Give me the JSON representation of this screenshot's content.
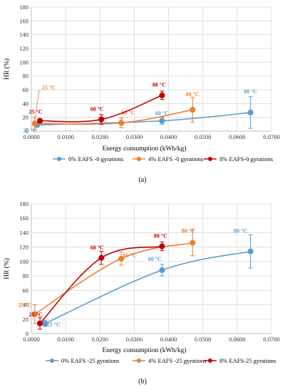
{
  "chart_data": [
    {
      "type": "line",
      "panel_label": "(a)",
      "xlabel": "Energy consumption (kWh/kg)",
      "ylabel": "HR (%)",
      "xlim": [
        0,
        0.07
      ],
      "ylim": [
        0,
        180
      ],
      "xticks": [
        "0.0000",
        "0.0100",
        "0.0200",
        "0.0300",
        "0.0400",
        "0.0500",
        "0.0600",
        "0.0700"
      ],
      "yticks": [
        "0",
        "20",
        "40",
        "60",
        "80",
        "100",
        "120",
        "140",
        "160",
        "180"
      ],
      "legend_position": "bottom",
      "grid": true,
      "series": [
        {
          "name": "0% EAFS -0 gyrations",
          "color": "#5b9bd5",
          "points": [
            {
              "x": 0.0017,
              "y": 9,
              "err": 3,
              "label": "25 °C"
            },
            {
              "x": 0.0381,
              "y": 15,
              "err": 5,
              "label": "60 °C"
            },
            {
              "x": 0.0639,
              "y": 27,
              "err": 23,
              "label": "80 °C"
            }
          ]
        },
        {
          "name": "4% EAFS -0 gyrations",
          "color": "#ed7d31",
          "points": [
            {
              "x": 0.001,
              "y": 11,
              "err": 9,
              "label": "25 °C"
            },
            {
              "x": 0.0262,
              "y": 12,
              "err": 7,
              "label": "60 °C"
            },
            {
              "x": 0.047,
              "y": 31,
              "err": 18,
              "label": "80 °C"
            }
          ]
        },
        {
          "name": "8% EAFS-0 gyrations",
          "color": "#c00000",
          "points": [
            {
              "x": 0.0025,
              "y": 15,
              "err": 3,
              "label": "25 °C"
            },
            {
              "x": 0.0204,
              "y": 17,
              "err": 7,
              "label": "60 °C"
            },
            {
              "x": 0.0381,
              "y": 52,
              "err": 6,
              "label": "80 °C"
            }
          ]
        }
      ]
    },
    {
      "type": "line",
      "panel_label": "(b)",
      "xlabel": "Energy consumption (kWh/kg)",
      "ylabel": "HR (%)",
      "xlim": [
        0,
        0.07
      ],
      "ylim": [
        0,
        180
      ],
      "xticks": [
        "0.0000",
        "0.0100",
        "0.0200",
        "0.0300",
        "0.0400",
        "0.0500",
        "0.0600",
        "0.0700"
      ],
      "yticks": [
        "0",
        "20",
        "40",
        "60",
        "80",
        "100",
        "120",
        "140",
        "160",
        "180"
      ],
      "legend_position": "bottom",
      "grid": true,
      "series": [
        {
          "name": "0% EAFS -25 gyrations",
          "color": "#5b9bd5",
          "points": [
            {
              "x": 0.004,
              "y": 14,
              "err": 4,
              "label": "25 °C"
            },
            {
              "x": 0.0381,
              "y": 88,
              "err": 8,
              "label": "60 °C"
            },
            {
              "x": 0.0639,
              "y": 114,
              "err": 23,
              "label": "80 °C"
            }
          ]
        },
        {
          "name": "4% EAFS -25 gyrations",
          "color": "#ed7d31",
          "points": [
            {
              "x": 0.001,
              "y": 27,
              "err": 13,
              "label": "25 °C"
            },
            {
              "x": 0.0262,
              "y": 104,
              "err": 9,
              "label": "60 °C"
            },
            {
              "x": 0.047,
              "y": 126,
              "err": 18,
              "label": "80 °C"
            }
          ]
        },
        {
          "name": "8% EAFS-25 gyrations",
          "color": "#c00000",
          "points": [
            {
              "x": 0.0025,
              "y": 14,
              "err": 8,
              "label": "25 °C"
            },
            {
              "x": 0.0204,
              "y": 105,
              "err": 9,
              "label": "60 °C"
            },
            {
              "x": 0.0381,
              "y": 121,
              "err": 6,
              "label": "80 °C"
            }
          ]
        }
      ]
    }
  ]
}
